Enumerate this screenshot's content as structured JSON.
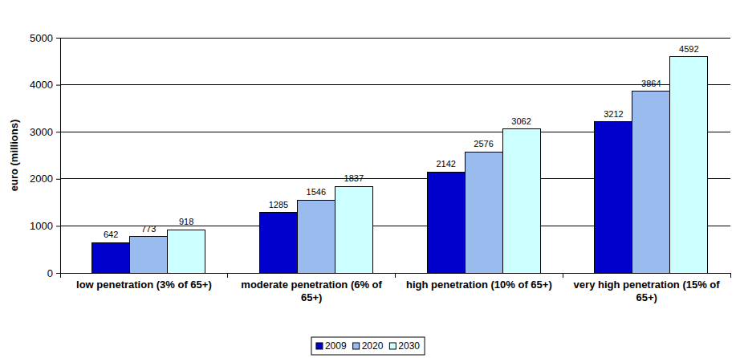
{
  "chart_data": {
    "type": "bar",
    "y_label": "euro (millions)",
    "categories": [
      "low penetration (3% of 65+)",
      "moderate penetration (6% of 65+)",
      "high penetration (10% of 65+)",
      "very high penetration (15% of 65+)"
    ],
    "series": [
      {
        "name": "2009",
        "color": "#0000cc",
        "values": [
          642,
          1285,
          2142,
          3212
        ]
      },
      {
        "name": "2020",
        "color": "#99bbee",
        "values": [
          773,
          1546,
          2576,
          3864
        ]
      },
      {
        "name": "2030",
        "color": "#ccffff",
        "values": [
          918,
          1837,
          3062,
          4592
        ]
      }
    ],
    "ylim": [
      0,
      5000
    ],
    "yticks": [
      0,
      1000,
      2000,
      3000,
      4000,
      5000
    ],
    "grid": true,
    "data_labels": true,
    "legend": "bottom"
  }
}
